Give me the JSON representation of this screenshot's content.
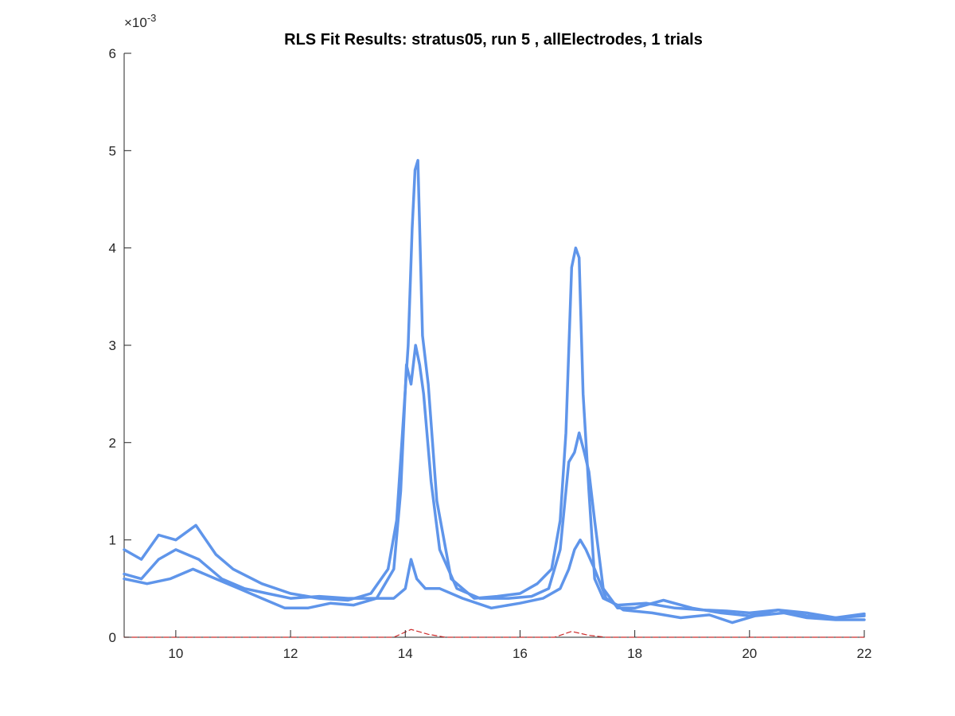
{
  "chart_data": {
    "type": "line",
    "title": "RLS Fit Results: stratus05, run 5 , allElectrodes, 1 trials",
    "xlabel": "",
    "ylabel": "",
    "xlim": [
      9.1,
      22
    ],
    "ylim": [
      0,
      0.006
    ],
    "x_ticks": [
      "10",
      "12",
      "14",
      "16",
      "18",
      "20",
      "22"
    ],
    "y_ticks": [
      "0",
      "1",
      "2",
      "3",
      "4",
      "5",
      "6"
    ],
    "y_exponent": {
      "base": "×10",
      "power": "-3"
    },
    "grid": false,
    "legend": "none",
    "series": [
      {
        "color": "#5f95ea",
        "x": [
          9.1,
          9.4,
          9.7,
          10.0,
          10.35,
          10.7,
          11.0,
          11.5,
          12.0,
          12.5,
          13.0,
          13.4,
          13.7,
          13.85,
          13.95,
          14.05,
          14.12,
          14.17,
          14.22,
          14.3,
          14.4,
          14.55,
          14.8,
          15.2,
          15.6,
          16.0,
          16.3,
          16.55,
          16.7,
          16.8,
          16.9,
          16.97,
          17.03,
          17.1,
          17.2,
          17.3,
          17.45,
          17.7,
          18.2,
          18.7,
          19.2,
          19.6,
          20.0,
          20.5,
          21.0,
          21.5,
          22.0
        ],
        "y": [
          0.0009,
          0.0008,
          0.00105,
          0.001,
          0.00115,
          0.00085,
          0.0007,
          0.00055,
          0.00045,
          0.0004,
          0.00038,
          0.00045,
          0.0007,
          0.0012,
          0.0021,
          0.003,
          0.0042,
          0.0048,
          0.0049,
          0.0031,
          0.0026,
          0.0014,
          0.0006,
          0.0004,
          0.00042,
          0.00045,
          0.00055,
          0.0007,
          0.0012,
          0.0021,
          0.0038,
          0.004,
          0.0039,
          0.0025,
          0.0015,
          0.0006,
          0.0004,
          0.00033,
          0.00035,
          0.0003,
          0.00028,
          0.00027,
          0.00025,
          0.00028,
          0.00022,
          0.0002,
          0.00022
        ]
      },
      {
        "color": "#5f95ea",
        "x": [
          9.1,
          9.4,
          9.7,
          10.0,
          10.4,
          10.8,
          11.2,
          11.6,
          12.0,
          12.5,
          13.0,
          13.5,
          13.8,
          13.92,
          14.02,
          14.1,
          14.18,
          14.25,
          14.32,
          14.45,
          14.6,
          14.9,
          15.3,
          15.8,
          16.2,
          16.5,
          16.7,
          16.85,
          16.95,
          17.03,
          17.12,
          17.2,
          17.3,
          17.45,
          17.7,
          18.0,
          18.5,
          19.0,
          19.5,
          20.0,
          20.5,
          21.0,
          21.5,
          22.0
        ],
        "y": [
          0.00065,
          0.0006,
          0.0008,
          0.0009,
          0.0008,
          0.0006,
          0.0005,
          0.00045,
          0.0004,
          0.00042,
          0.0004,
          0.0004,
          0.0007,
          0.0015,
          0.0028,
          0.0026,
          0.003,
          0.0028,
          0.0025,
          0.0016,
          0.0009,
          0.0005,
          0.0004,
          0.0004,
          0.00042,
          0.0005,
          0.0009,
          0.0018,
          0.0019,
          0.0021,
          0.0019,
          0.0017,
          0.0012,
          0.0005,
          0.0003,
          0.0003,
          0.00038,
          0.0003,
          0.00025,
          0.00022,
          0.00028,
          0.00025,
          0.0002,
          0.00024
        ]
      },
      {
        "color": "#5f95ea",
        "x": [
          9.1,
          9.5,
          9.9,
          10.3,
          10.7,
          11.1,
          11.5,
          11.9,
          12.3,
          12.7,
          13.1,
          13.5,
          13.8,
          14.0,
          14.1,
          14.2,
          14.35,
          14.6,
          15.0,
          15.5,
          16.0,
          16.4,
          16.7,
          16.85,
          16.95,
          17.05,
          17.15,
          17.3,
          17.5,
          17.8,
          18.3,
          18.8,
          19.3,
          19.7,
          20.1,
          20.6,
          21.0,
          21.5,
          22.0
        ],
        "y": [
          0.0006,
          0.00055,
          0.0006,
          0.0007,
          0.0006,
          0.0005,
          0.0004,
          0.0003,
          0.0003,
          0.00035,
          0.00033,
          0.0004,
          0.0004,
          0.0005,
          0.0008,
          0.0006,
          0.0005,
          0.0005,
          0.0004,
          0.0003,
          0.00035,
          0.0004,
          0.0005,
          0.0007,
          0.0009,
          0.001,
          0.0009,
          0.0007,
          0.0004,
          0.00028,
          0.00025,
          0.0002,
          0.00023,
          0.00015,
          0.00022,
          0.00025,
          0.0002,
          0.00018,
          0.00018
        ]
      },
      {
        "color": "#cc2a2a",
        "dashed": true,
        "x": [
          9.1,
          13.8,
          14.1,
          14.4,
          14.7,
          16.6,
          16.9,
          17.2,
          17.5,
          22.0
        ],
        "y": [
          0,
          0,
          8e-05,
          3e-05,
          0,
          0,
          6e-05,
          2e-05,
          0,
          0
        ]
      }
    ]
  }
}
